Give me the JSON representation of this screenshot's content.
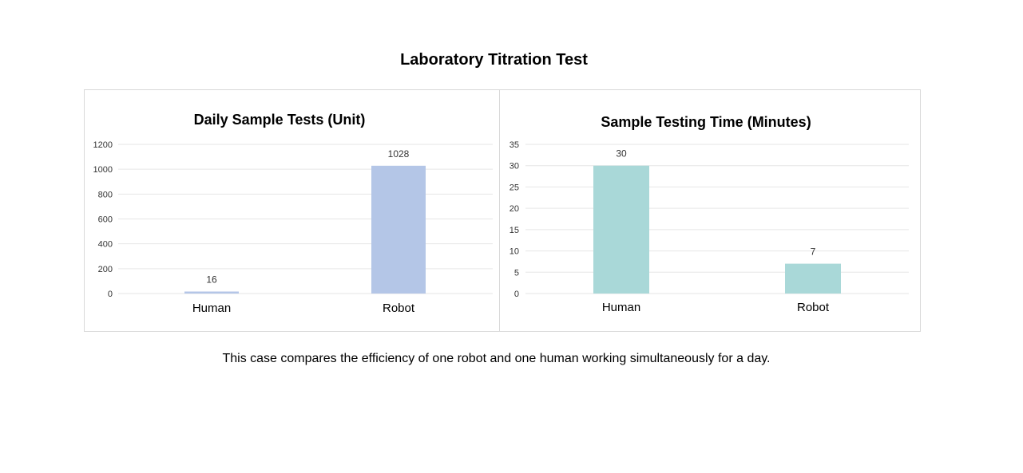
{
  "page": {
    "title": "Laboratory Titration Test",
    "caption": "This case compares the efficiency of one robot and one human working simultaneously for a day."
  },
  "chart_data": [
    {
      "type": "bar",
      "title": "Daily Sample Tests (Unit)",
      "categories": [
        "Human",
        "Robot"
      ],
      "values": [
        16,
        1028
      ],
      "ylim": [
        0,
        1200
      ],
      "yticks": [
        0,
        200,
        400,
        600,
        800,
        1000,
        1200
      ],
      "grid": true,
      "color": "#b4c6e7"
    },
    {
      "type": "bar",
      "title": "Sample Testing Time (Minutes)",
      "categories": [
        "Human",
        "Robot"
      ],
      "values": [
        30,
        7
      ],
      "ylim": [
        0,
        35
      ],
      "yticks": [
        0,
        5,
        10,
        15,
        20,
        25,
        30,
        35
      ],
      "grid": true,
      "color": "#a9d8d8"
    }
  ]
}
